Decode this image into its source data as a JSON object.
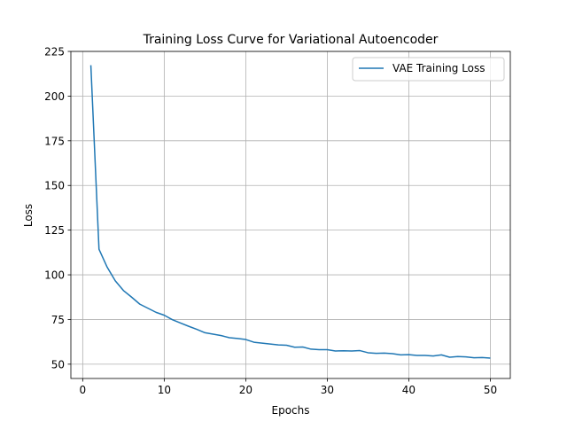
{
  "chart_data": {
    "type": "line",
    "title": "Training Loss Curve for Variational Autoencoder",
    "xlabel": "Epochs",
    "ylabel": "Loss",
    "xlim": [
      -1.45,
      52.45
    ],
    "ylim": [
      42,
      225
    ],
    "xticks": [
      0,
      10,
      20,
      30,
      40,
      50
    ],
    "yticks": [
      50,
      75,
      100,
      125,
      150,
      175,
      200,
      225
    ],
    "grid": true,
    "legend_position": "upper right",
    "series": [
      {
        "name": "VAE Training Loss",
        "color": "#1f77b4",
        "x": [
          1,
          2,
          3,
          4,
          5,
          6,
          7,
          8,
          9,
          10,
          11,
          12,
          13,
          14,
          15,
          16,
          17,
          18,
          19,
          20,
          21,
          22,
          23,
          24,
          25,
          26,
          27,
          28,
          29,
          30,
          31,
          32,
          33,
          34,
          35,
          36,
          37,
          38,
          39,
          40,
          41,
          42,
          43,
          44,
          45,
          46,
          47,
          48,
          49,
          50
        ],
        "values": [
          217.3,
          114.3,
          104.3,
          96.6,
          91.2,
          87.5,
          83.6,
          81.3,
          79.0,
          77.4,
          74.9,
          73.0,
          71.2,
          69.5,
          67.6,
          66.8,
          66.0,
          64.8,
          64.4,
          63.8,
          62.3,
          61.8,
          61.3,
          60.8,
          60.6,
          59.5,
          59.6,
          58.4,
          58.1,
          58.1,
          57.4,
          57.5,
          57.4,
          57.6,
          56.4,
          56.1,
          56.2,
          55.9,
          55.2,
          55.3,
          54.9,
          54.9,
          54.6,
          55.2,
          53.9,
          54.3,
          54.1,
          53.6,
          53.7,
          53.4
        ]
      }
    ]
  }
}
